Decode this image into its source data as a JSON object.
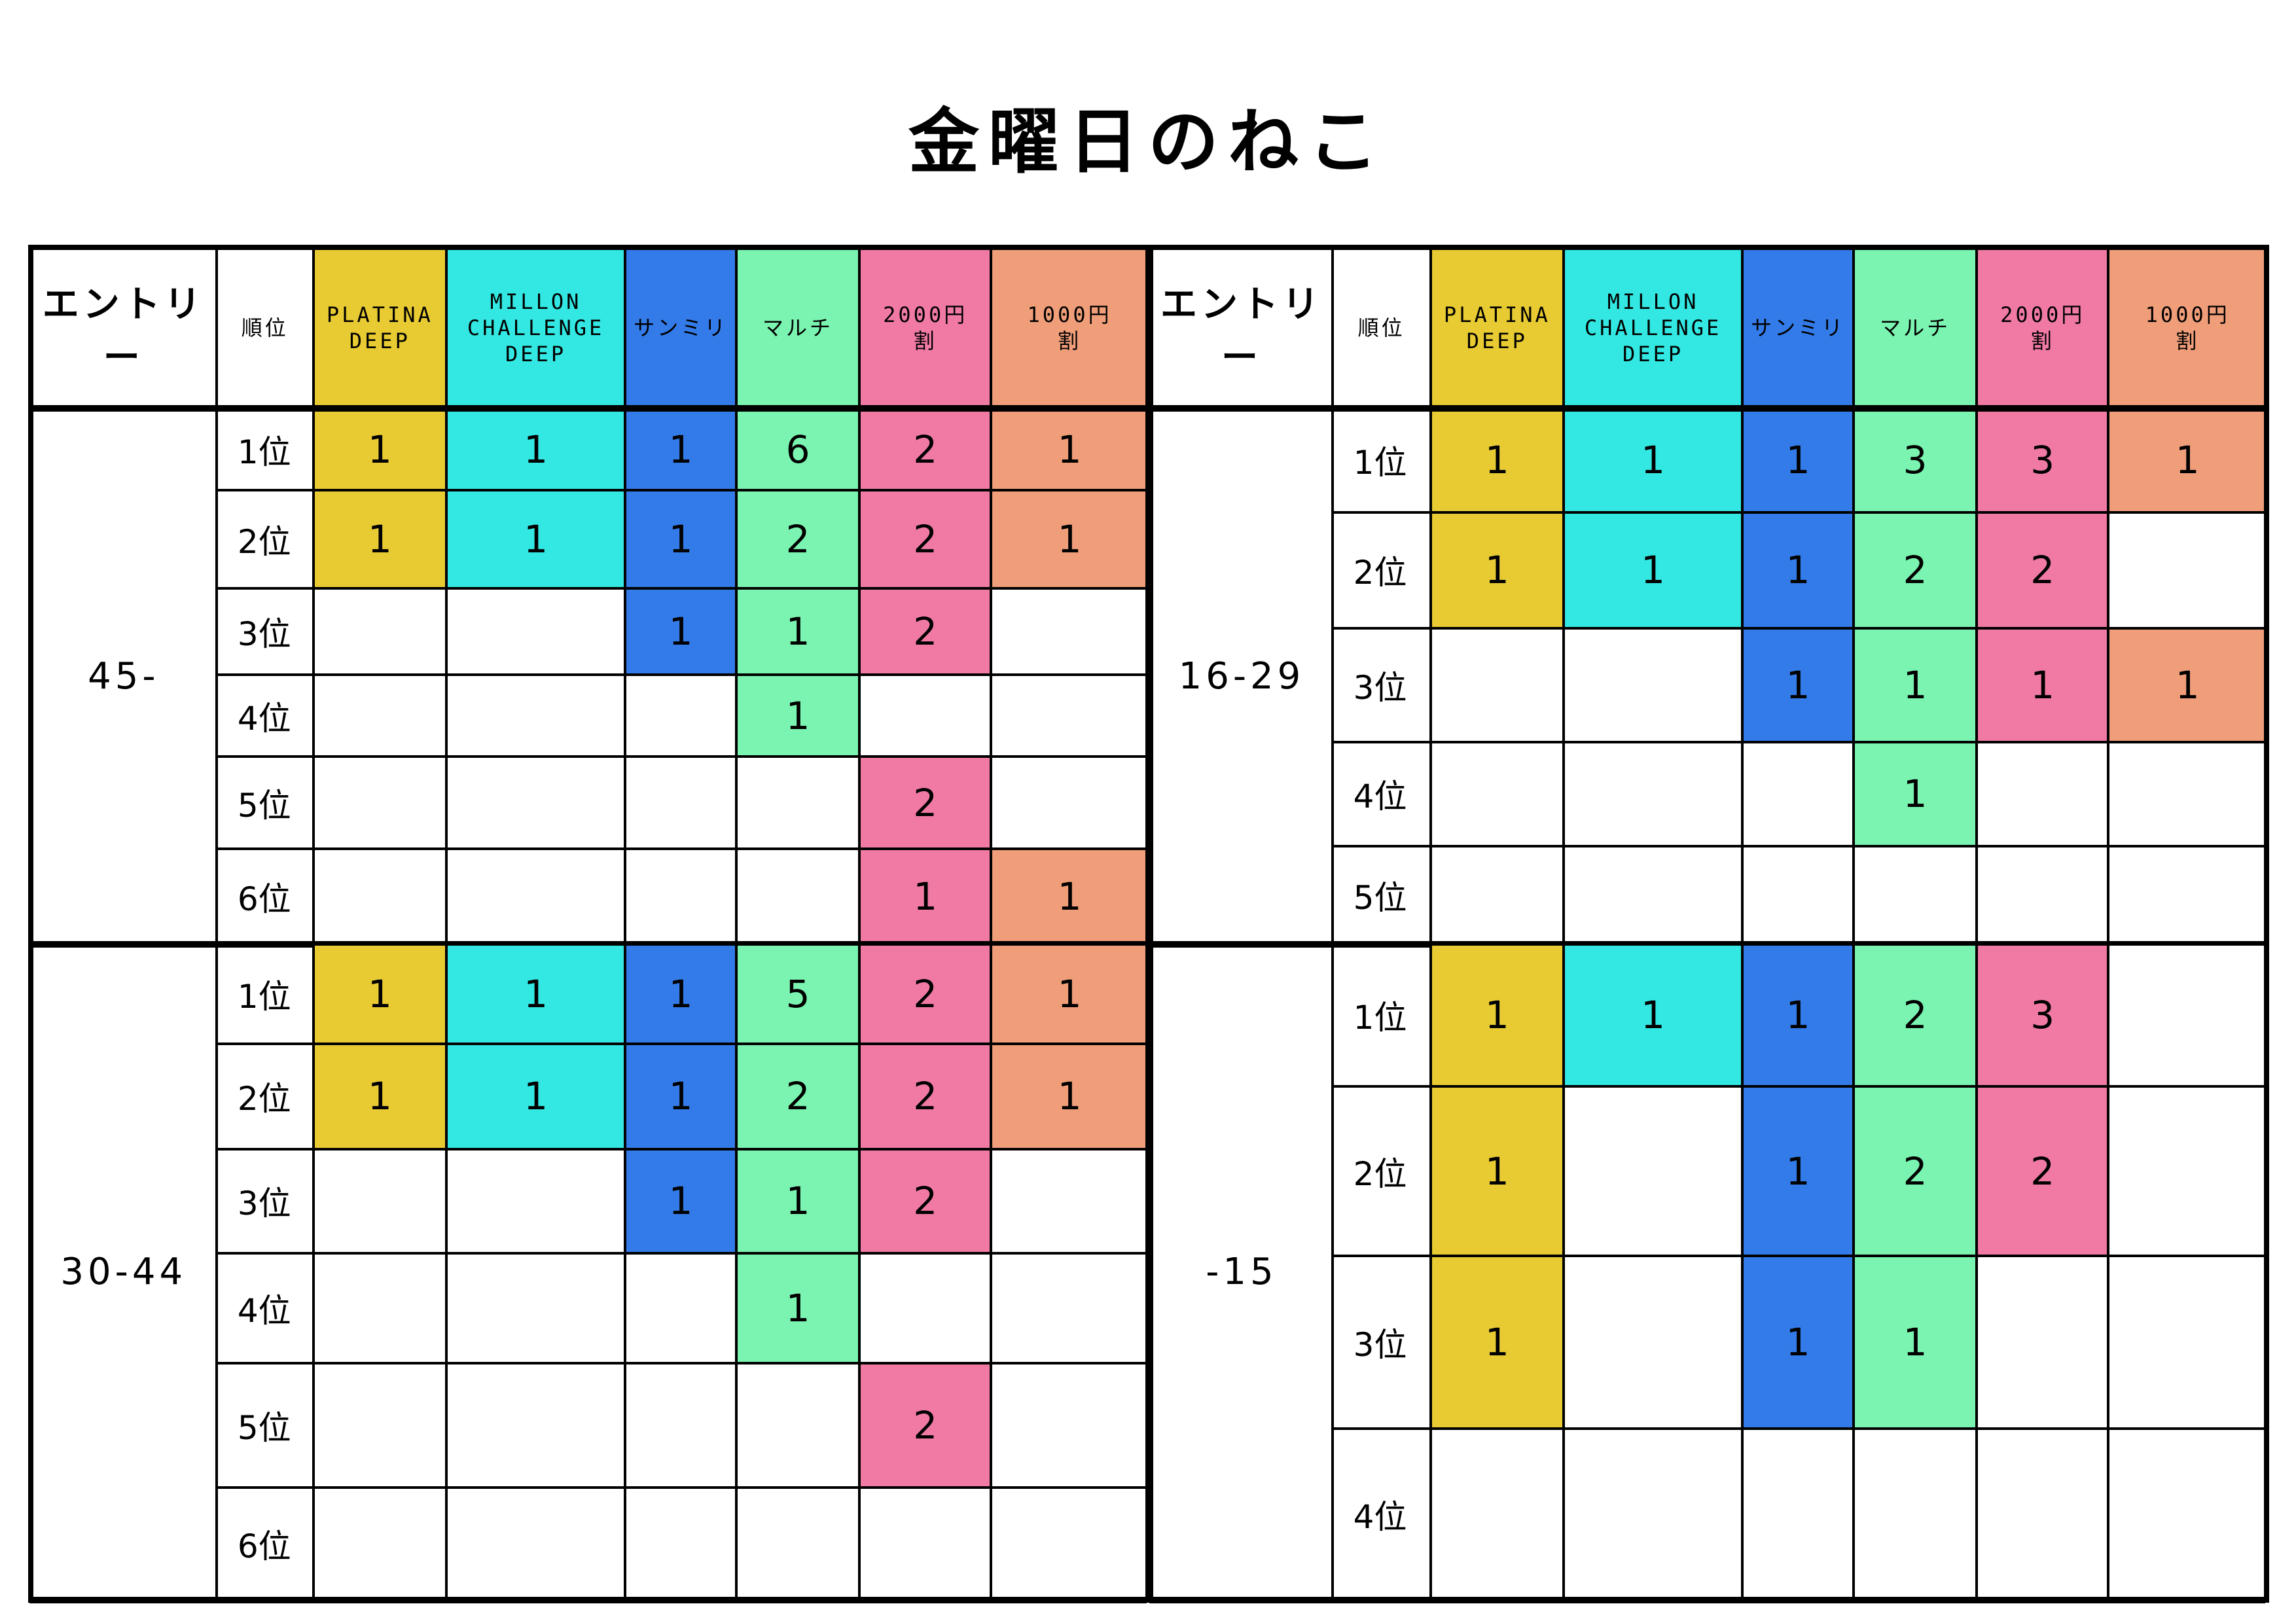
{
  "title": "金曜日のねこ",
  "headers": {
    "entry": "エントリー",
    "rank": "順位",
    "columns": [
      "PLATINA\nDEEP",
      "MILLON\nCHALLENGE\nDEEP",
      "サンミリ",
      "マルチ",
      "2000円\n割",
      "1000円\n割"
    ]
  },
  "column_colors": [
    "#e8cb32",
    "#33e8e2",
    "#337be8",
    "#7af4b0",
    "#f07aa4",
    "#f09e7a"
  ],
  "tables": [
    {
      "groups": [
        {
          "label": "45-",
          "rows": [
            {
              "rank": "1位",
              "values": [
                "1",
                "1",
                "1",
                "6",
                "2",
                "1"
              ]
            },
            {
              "rank": "2位",
              "values": [
                "1",
                "1",
                "1",
                "2",
                "2",
                "1"
              ]
            },
            {
              "rank": "3位",
              "values": [
                null,
                null,
                "1",
                "1",
                "2",
                null
              ]
            },
            {
              "rank": "4位",
              "values": [
                null,
                null,
                null,
                "1",
                null,
                null
              ]
            },
            {
              "rank": "5位",
              "values": [
                null,
                null,
                null,
                null,
                "2",
                null
              ]
            },
            {
              "rank": "6位",
              "values": [
                null,
                null,
                null,
                null,
                "1",
                "1"
              ]
            }
          ]
        },
        {
          "label": "30-44",
          "rows": [
            {
              "rank": "1位",
              "values": [
                "1",
                "1",
                "1",
                "5",
                "2",
                "1"
              ]
            },
            {
              "rank": "2位",
              "values": [
                "1",
                "1",
                "1",
                "2",
                "2",
                "1"
              ]
            },
            {
              "rank": "3位",
              "values": [
                null,
                null,
                "1",
                "1",
                "2",
                null
              ]
            },
            {
              "rank": "4位",
              "values": [
                null,
                null,
                null,
                "1",
                null,
                null
              ]
            },
            {
              "rank": "5位",
              "values": [
                null,
                null,
                null,
                null,
                "2",
                null
              ]
            },
            {
              "rank": "6位",
              "values": [
                null,
                null,
                null,
                null,
                null,
                null
              ]
            }
          ]
        }
      ]
    },
    {
      "groups": [
        {
          "label": "16-29",
          "rows": [
            {
              "rank": "1位",
              "values": [
                "1",
                "1",
                "1",
                "3",
                "3",
                "1"
              ]
            },
            {
              "rank": "2位",
              "values": [
                "1",
                "1",
                "1",
                "2",
                "2",
                null
              ]
            },
            {
              "rank": "3位",
              "values": [
                null,
                null,
                "1",
                "1",
                "1",
                "1"
              ]
            },
            {
              "rank": "4位",
              "values": [
                null,
                null,
                null,
                "1",
                null,
                null
              ]
            },
            {
              "rank": "5位",
              "values": [
                null,
                null,
                null,
                null,
                null,
                null
              ]
            }
          ]
        },
        {
          "label": "-15",
          "rows": [
            {
              "rank": "1位",
              "values": [
                "1",
                "1",
                "1",
                "2",
                "3",
                null
              ]
            },
            {
              "rank": "2位",
              "values": [
                "1",
                null,
                "1",
                "2",
                "2",
                null
              ]
            },
            {
              "rank": "3位",
              "values": [
                "1",
                null,
                "1",
                "1",
                null,
                null
              ]
            },
            {
              "rank": "4位",
              "values": [
                null,
                null,
                null,
                null,
                null,
                null
              ]
            }
          ]
        }
      ]
    }
  ]
}
